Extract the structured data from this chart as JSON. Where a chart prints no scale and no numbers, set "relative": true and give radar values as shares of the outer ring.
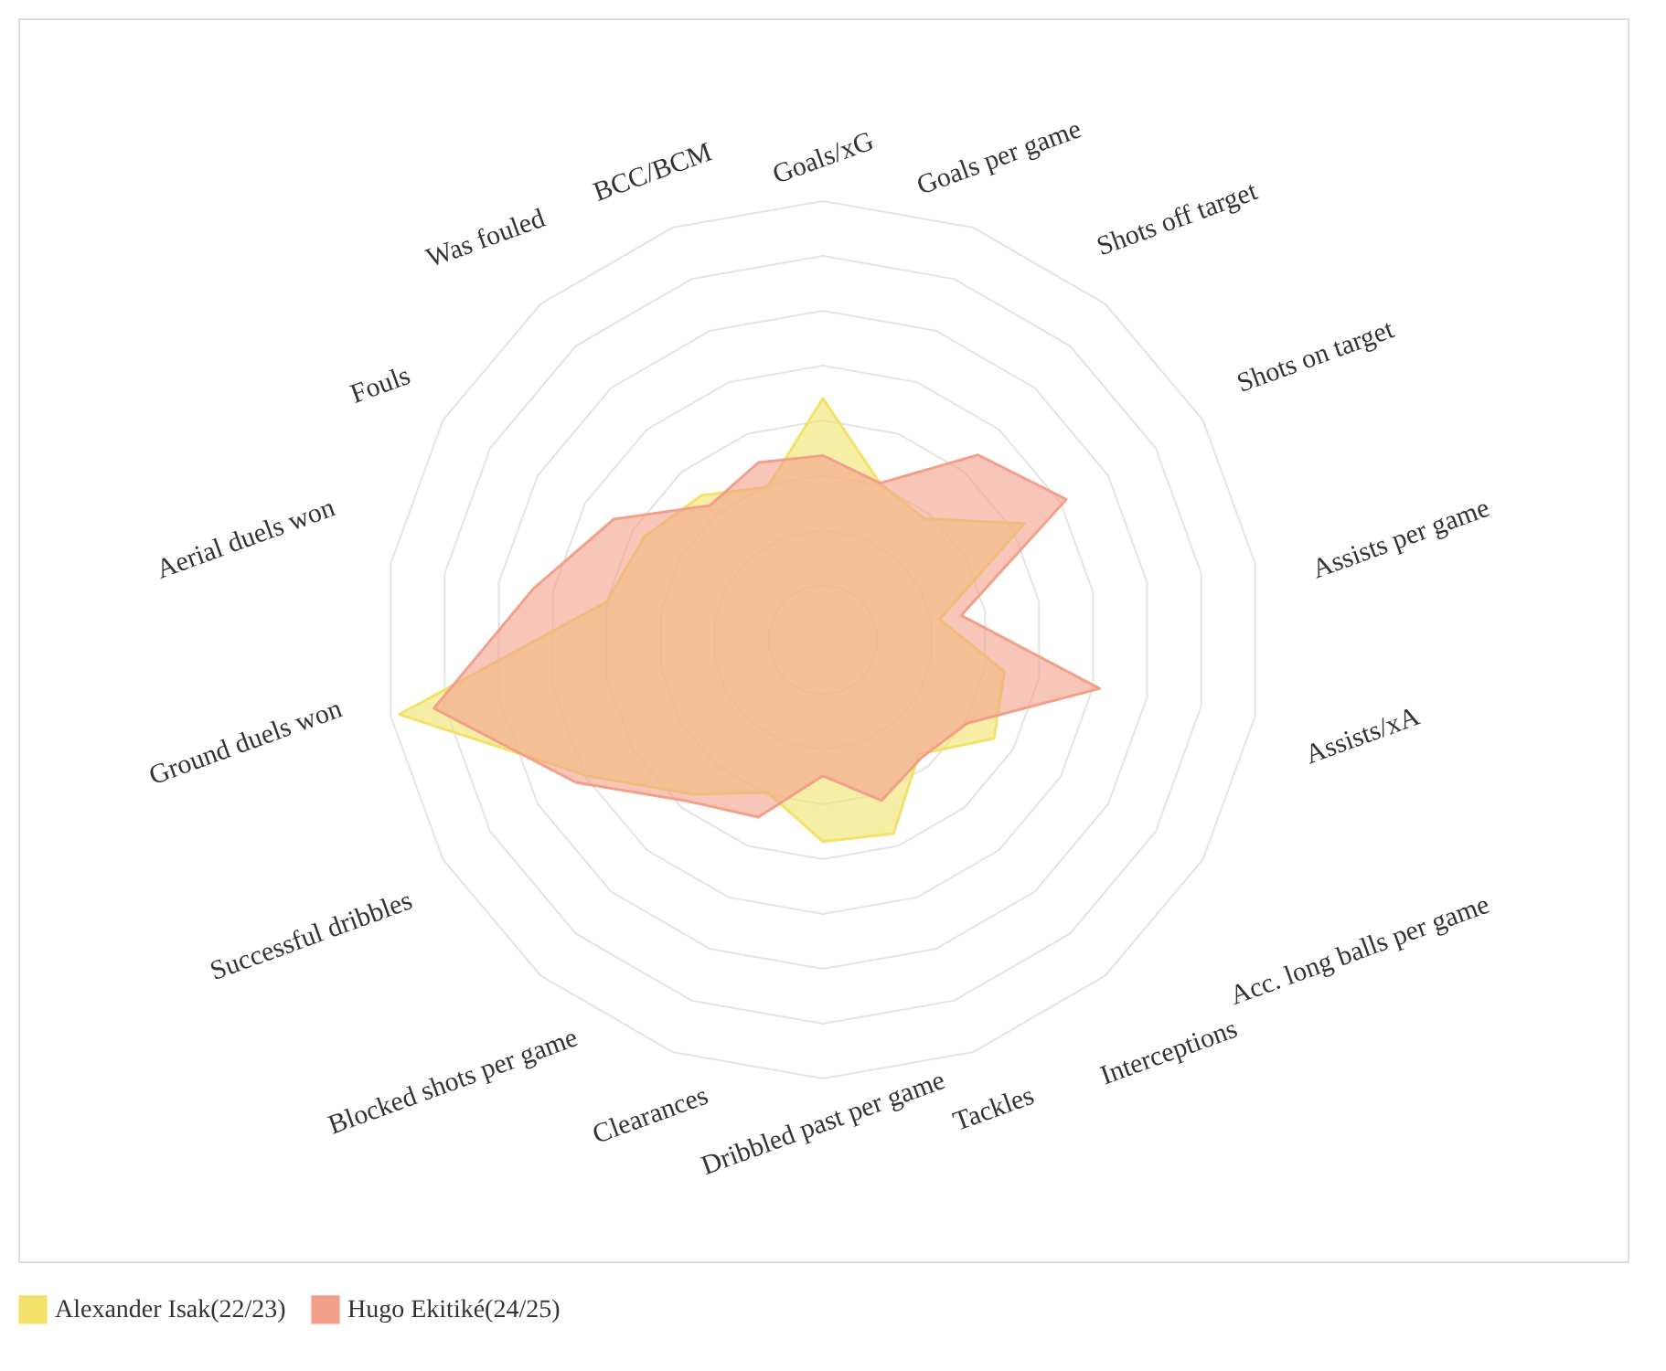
{
  "chart_data": {
    "type": "radar",
    "relative": true,
    "grid": true,
    "legend": "bottom",
    "categories": [
      "Goals/xG",
      "Goals per game",
      "Shots off target",
      "Shots on target",
      "Assists per game",
      "Assists/xA",
      "Acc. long balls per game",
      "Interceptions",
      "Tackles",
      "Dribbled past per game",
      "Clearances",
      "Blocked shots per game",
      "Successful dribbles",
      "Ground duels won",
      "Aerial duels won",
      "Fouls",
      "Was fouled",
      "BCC/BCM"
    ],
    "series": [
      {
        "name": "Alexander Isak(22/23)",
        "color": "#f2e26a",
        "values": [
          0.55,
          0.38,
          0.36,
          0.53,
          0.27,
          0.42,
          0.45,
          0.34,
          0.47,
          0.46,
          0.37,
          0.46,
          0.62,
          0.98,
          0.5,
          0.47,
          0.43,
          0.37
        ]
      },
      {
        "name": "Hugo Ekitiké(24/25)",
        "color": "#f2a08a",
        "values": [
          0.42,
          0.38,
          0.55,
          0.64,
          0.32,
          0.64,
          0.38,
          0.35,
          0.39,
          0.31,
          0.43,
          0.48,
          0.65,
          0.9,
          0.67,
          0.55,
          0.4,
          0.43
        ]
      }
    ]
  }
}
